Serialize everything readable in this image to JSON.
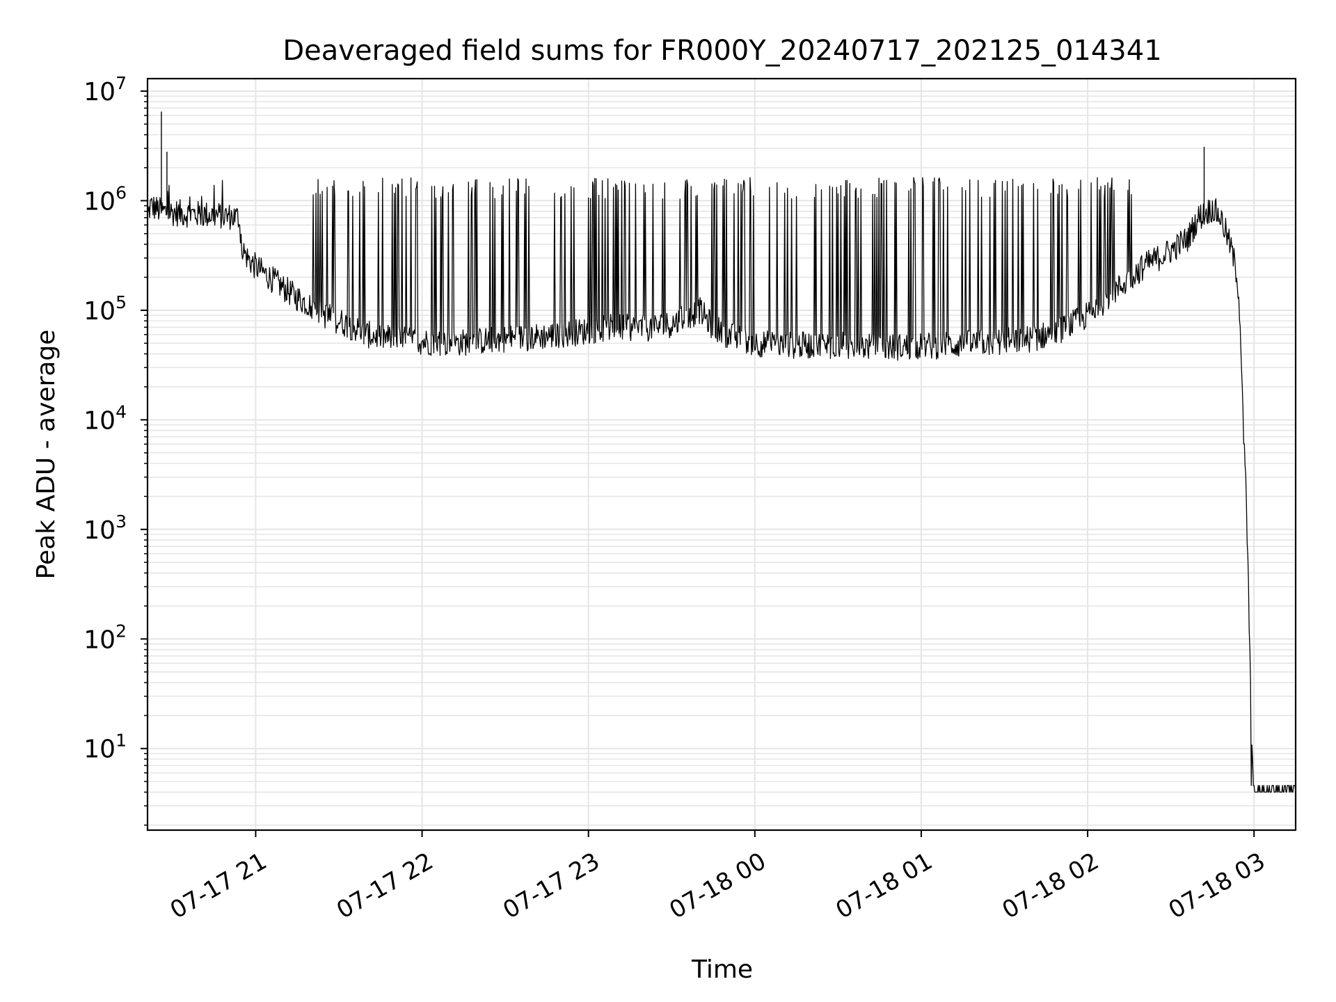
{
  "chart_data": {
    "type": "line",
    "title": "Deaveraged field sums for FR000Y_20240717_202125_014341",
    "xlabel": "Time",
    "ylabel": "Peak ADU - average",
    "yscale": "log",
    "ylim": [
      1.8,
      13000000
    ],
    "xlim": [
      "2024-07-17 20:21",
      "2024-07-18 03:15"
    ],
    "grid": true,
    "line_color": "#000000",
    "grid_color": "#e5e5e5",
    "x_ticks": [
      {
        "value": "2024-07-17 21:00",
        "label": "07-17 21"
      },
      {
        "value": "2024-07-17 22:00",
        "label": "07-17 22"
      },
      {
        "value": "2024-07-17 23:00",
        "label": "07-17 23"
      },
      {
        "value": "2024-07-18 00:00",
        "label": "07-18 00"
      },
      {
        "value": "2024-07-18 01:00",
        "label": "07-18 01"
      },
      {
        "value": "2024-07-18 02:00",
        "label": "07-18 02"
      },
      {
        "value": "2024-07-18 03:00",
        "label": "07-18 03"
      }
    ],
    "y_ticks": [
      {
        "value": 10,
        "base": "10",
        "exp": "1"
      },
      {
        "value": 100,
        "base": "10",
        "exp": "2"
      },
      {
        "value": 1000,
        "base": "10",
        "exp": "3"
      },
      {
        "value": 10000,
        "base": "10",
        "exp": "4"
      },
      {
        "value": 100000,
        "base": "10",
        "exp": "5"
      },
      {
        "value": 1000000,
        "base": "10",
        "exp": "6"
      },
      {
        "value": 10000000,
        "base": "10",
        "exp": "7"
      }
    ],
    "series": [
      {
        "x": [
          "2024-07-17 20:21",
          "2024-07-17 20:22",
          "2024-07-17 20:24",
          "2024-07-17 20:26",
          "2024-07-17 20:30",
          "2024-07-17 20:35",
          "2024-07-17 20:40",
          "2024-07-17 20:45",
          "2024-07-17 20:50",
          "2024-07-17 20:54",
          "2024-07-17 20:55",
          "2024-07-17 20:56",
          "2024-07-17 20:58",
          "2024-07-17 21:00",
          "2024-07-17 21:05",
          "2024-07-17 21:10",
          "2024-07-17 21:15",
          "2024-07-17 21:20",
          "2024-07-17 21:25",
          "2024-07-17 21:30",
          "2024-07-17 21:35",
          "2024-07-17 21:40",
          "2024-07-17 21:50",
          "2024-07-17 22:00",
          "2024-07-17 22:10",
          "2024-07-17 22:20",
          "2024-07-17 22:30",
          "2024-07-17 22:40",
          "2024-07-17 22:50",
          "2024-07-17 23:00",
          "2024-07-17 23:10",
          "2024-07-17 23:20",
          "2024-07-17 23:30",
          "2024-07-17 23:35",
          "2024-07-17 23:40",
          "2024-07-17 23:45",
          "2024-07-17 23:50",
          "2024-07-18 00:00",
          "2024-07-18 00:10",
          "2024-07-18 00:20",
          "2024-07-18 00:30",
          "2024-07-18 00:40",
          "2024-07-18 00:50",
          "2024-07-18 01:00",
          "2024-07-18 01:10",
          "2024-07-18 01:20",
          "2024-07-18 01:30",
          "2024-07-18 01:40",
          "2024-07-18 01:50",
          "2024-07-18 02:00",
          "2024-07-18 02:10",
          "2024-07-18 02:20",
          "2024-07-18 02:30",
          "2024-07-18 02:33",
          "2024-07-18 02:36",
          "2024-07-18 02:40",
          "2024-07-18 02:45",
          "2024-07-18 02:48",
          "2024-07-18 02:50",
          "2024-07-18 02:52",
          "2024-07-18 02:54",
          "2024-07-18 02:55",
          "2024-07-18 02:56",
          "2024-07-18 02:57",
          "2024-07-18 02:58",
          "2024-07-18 02:59",
          "2024-07-18 03:00",
          "2024-07-18 03:05",
          "2024-07-18 03:10",
          "2024-07-18 03:15"
        ],
        "y": [
          700000,
          900000,
          850000,
          800000,
          780000,
          760000,
          750000,
          740000,
          720000,
          700000,
          400000,
          330000,
          280000,
          250000,
          200000,
          160000,
          130000,
          110000,
          90000,
          80000,
          70000,
          60000,
          55000,
          52000,
          50000,
          52000,
          55000,
          57000,
          60000,
          65000,
          70000,
          68000,
          75000,
          85000,
          100000,
          70000,
          60000,
          50000,
          48000,
          48000,
          48000,
          47000,
          46000,
          47000,
          48000,
          50000,
          52000,
          55000,
          65000,
          90000,
          150000,
          250000,
          350000,
          400000,
          450000,
          700000,
          850000,
          700000,
          500000,
          350000,
          200000,
          80000,
          10000,
          2500,
          300,
          15,
          4,
          4,
          4,
          4
        ]
      }
    ],
    "spike_bands": [
      {
        "from": "2024-07-17 21:20",
        "to": "2024-07-18 02:20",
        "top": 1300000,
        "bottom": 40000
      }
    ],
    "peak_annotations": [
      {
        "x": "2024-07-17 20:26",
        "y": 6500000
      },
      {
        "x": "2024-07-17 20:28",
        "y": 2800000
      },
      {
        "x": "2024-07-18 02:42",
        "y": 3100000
      }
    ]
  }
}
